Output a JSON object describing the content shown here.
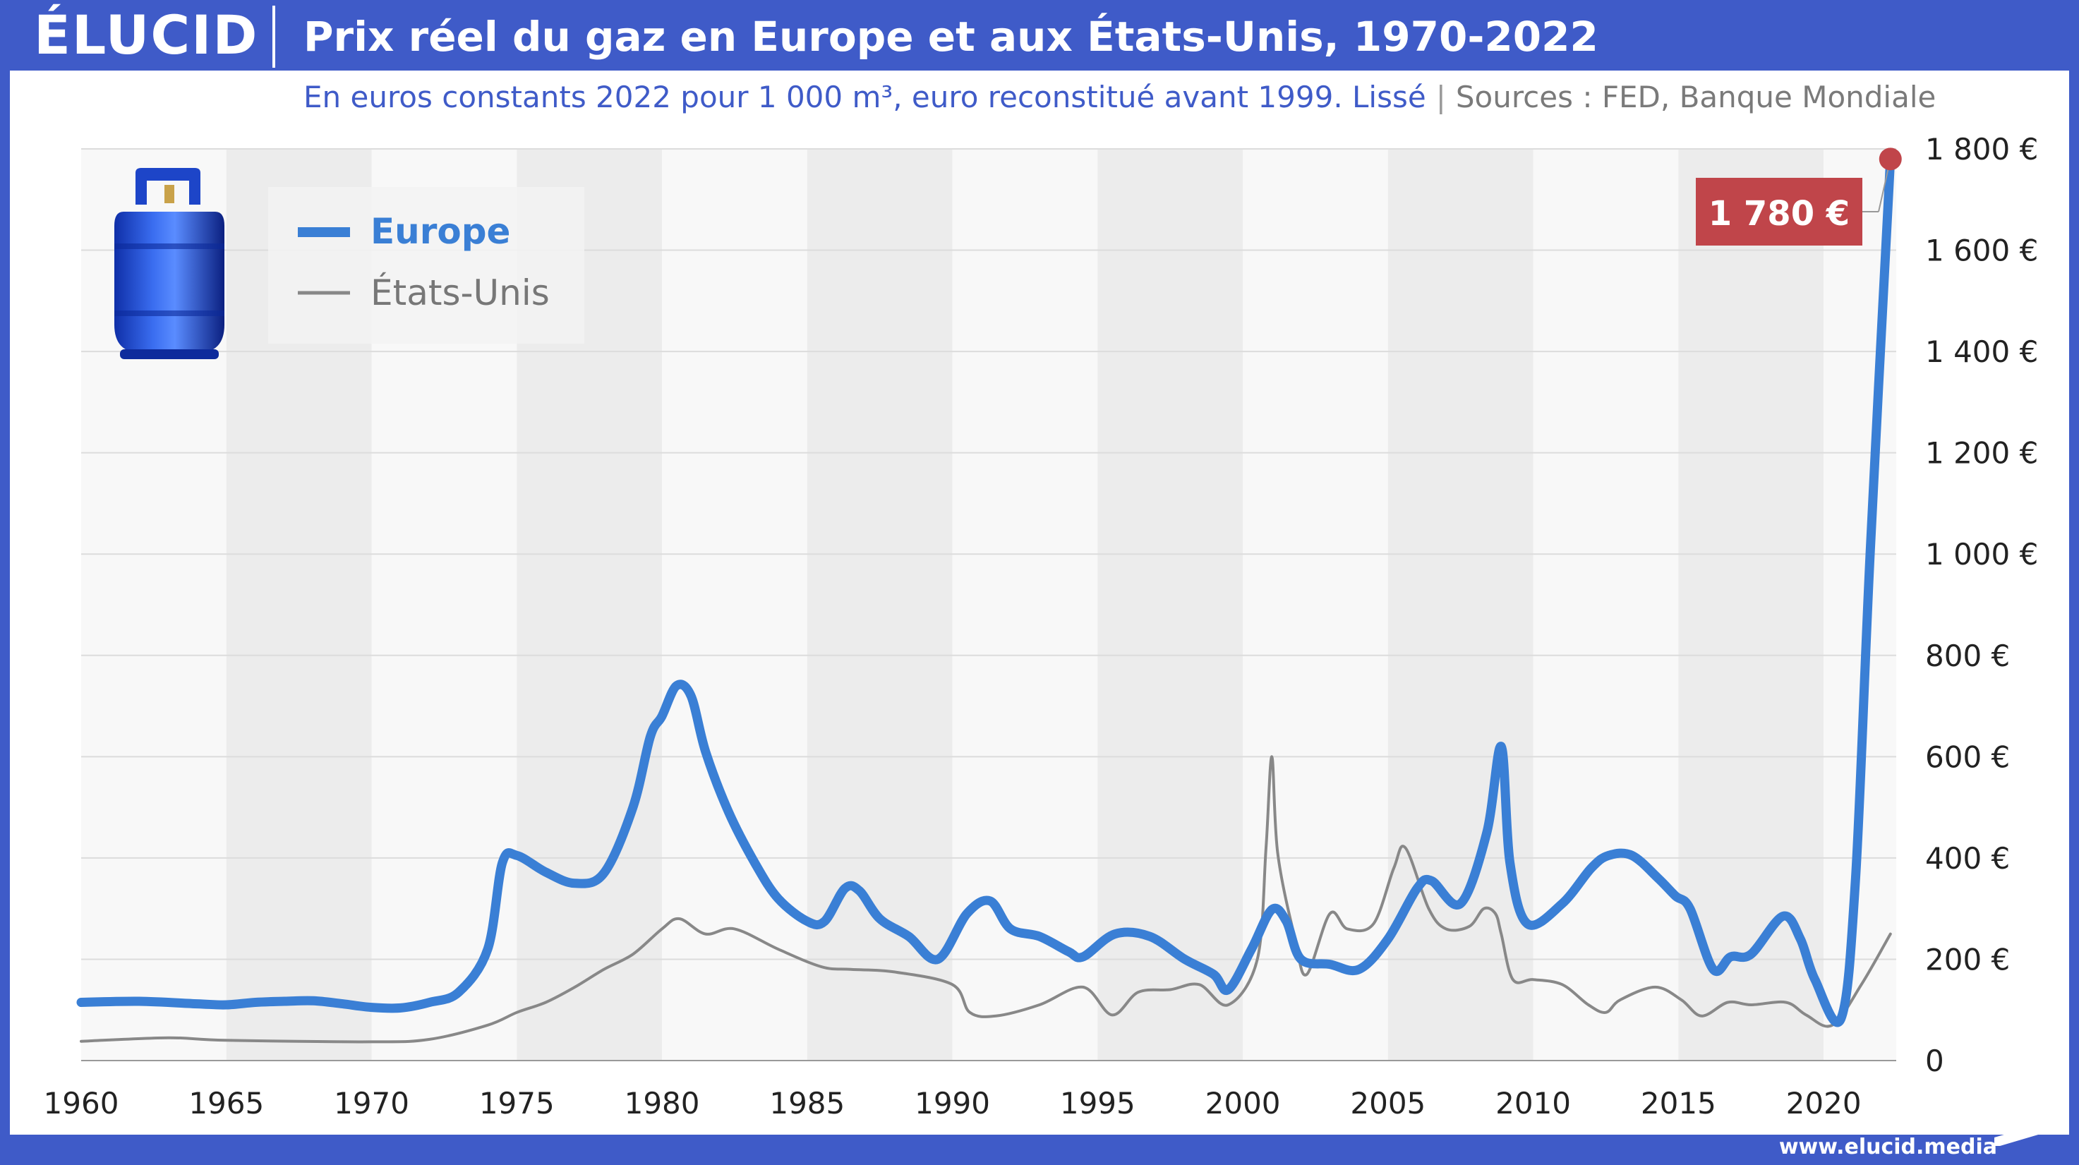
{
  "header": {
    "logo": "ÉLUCID",
    "title": "Prix réel du gaz en Europe et aux États-Unis, 1970-2022"
  },
  "subtitle": {
    "main": "En euros constants 2022 pour 1 000 m³, euro reconstitué avant 1999. Lissé",
    "separator": "|",
    "sources": "Sources : FED, Banque Mondiale"
  },
  "footer": {
    "url": "www.elucid.media"
  },
  "colors": {
    "brand": "#3f5bc8",
    "europe": "#3a7fd5",
    "usa": "#888888",
    "callout": "#c0454a"
  },
  "icons": [
    "gas-cylinder-icon",
    "elucid-logo"
  ],
  "chart_data": {
    "type": "line",
    "xlim": [
      1960,
      2022.5
    ],
    "ylim": [
      0,
      1800
    ],
    "x_ticks": [
      1960,
      1965,
      1970,
      1975,
      1980,
      1985,
      1990,
      1995,
      2000,
      2005,
      2010,
      2015,
      2020
    ],
    "y_ticks": [
      {
        "value": 0,
        "label": "0"
      },
      {
        "value": 200,
        "label": "200 €"
      },
      {
        "value": 400,
        "label": "400 €"
      },
      {
        "value": 600,
        "label": "600 €"
      },
      {
        "value": 800,
        "label": "800 €"
      },
      {
        "value": 1000,
        "label": "1 000 €"
      },
      {
        "value": 1200,
        "label": "1 200 €"
      },
      {
        "value": 1400,
        "label": "1 400 €"
      },
      {
        "value": 1600,
        "label": "1 600 €"
      },
      {
        "value": 1800,
        "label": "1 800 €"
      }
    ],
    "y_axis_side": "right",
    "background": "alternating vertical bands every 5 years",
    "grid": true,
    "legend_position": "top-left",
    "series": [
      {
        "name": "Europe",
        "color": "#3a7fd5",
        "width": "thick",
        "points": [
          [
            1960,
            115
          ],
          [
            1962,
            117
          ],
          [
            1964,
            112
          ],
          [
            1965,
            110
          ],
          [
            1966,
            115
          ],
          [
            1967,
            117
          ],
          [
            1968,
            118
          ],
          [
            1969,
            112
          ],
          [
            1970,
            105
          ],
          [
            1971,
            104
          ],
          [
            1972,
            115
          ],
          [
            1973,
            135
          ],
          [
            1974,
            220
          ],
          [
            1974.5,
            390
          ],
          [
            1975,
            405
          ],
          [
            1976,
            372
          ],
          [
            1977,
            350
          ],
          [
            1978,
            370
          ],
          [
            1979,
            500
          ],
          [
            1979.6,
            640
          ],
          [
            1980,
            680
          ],
          [
            1980.5,
            740
          ],
          [
            1981,
            720
          ],
          [
            1981.5,
            610
          ],
          [
            1982.3,
            490
          ],
          [
            1983.2,
            390
          ],
          [
            1984,
            320
          ],
          [
            1985,
            275
          ],
          [
            1985.6,
            275
          ],
          [
            1986.3,
            340
          ],
          [
            1986.8,
            335
          ],
          [
            1987.5,
            280
          ],
          [
            1988.5,
            245
          ],
          [
            1989.5,
            200
          ],
          [
            1990.5,
            290
          ],
          [
            1991.3,
            315
          ],
          [
            1992,
            260
          ],
          [
            1993,
            245
          ],
          [
            1994,
            215
          ],
          [
            1994.5,
            205
          ],
          [
            1995.6,
            250
          ],
          [
            1996.8,
            245
          ],
          [
            1998,
            200
          ],
          [
            1999,
            170
          ],
          [
            1999.5,
            140
          ],
          [
            2000.3,
            220
          ],
          [
            2001,
            298
          ],
          [
            2001.5,
            275
          ],
          [
            2002,
            200
          ],
          [
            2003,
            190
          ],
          [
            2004,
            180
          ],
          [
            2005,
            240
          ],
          [
            2006,
            340
          ],
          [
            2006.5,
            355
          ],
          [
            2007.5,
            310
          ],
          [
            2008.4,
            450
          ],
          [
            2008.9,
            620
          ],
          [
            2009.2,
            390
          ],
          [
            2009.8,
            270
          ],
          [
            2011,
            310
          ],
          [
            2012,
            380
          ],
          [
            2012.6,
            405
          ],
          [
            2013.4,
            405
          ],
          [
            2014.3,
            360
          ],
          [
            2014.9,
            325
          ],
          [
            2015.4,
            300
          ],
          [
            2016.2,
            180
          ],
          [
            2016.8,
            205
          ],
          [
            2017.5,
            210
          ],
          [
            2018.6,
            285
          ],
          [
            2019.2,
            240
          ],
          [
            2019.7,
            160
          ],
          [
            2020.6,
            83
          ],
          [
            2021.1,
            360
          ],
          [
            2021.6,
            1000
          ],
          [
            2022.3,
            1780
          ]
        ]
      },
      {
        "name": "États-Unis",
        "color": "#888888",
        "width": "thin",
        "points": [
          [
            1960,
            38
          ],
          [
            1963,
            45
          ],
          [
            1965,
            40
          ],
          [
            1970,
            37
          ],
          [
            1972,
            42
          ],
          [
            1974,
            70
          ],
          [
            1975,
            95
          ],
          [
            1976,
            115
          ],
          [
            1977,
            145
          ],
          [
            1978,
            180
          ],
          [
            1979,
            210
          ],
          [
            1980,
            260
          ],
          [
            1980.6,
            280
          ],
          [
            1981.5,
            250
          ],
          [
            1982.5,
            260
          ],
          [
            1984,
            220
          ],
          [
            1985.5,
            185
          ],
          [
            1986.5,
            180
          ],
          [
            1988,
            175
          ],
          [
            1990,
            150
          ],
          [
            1990.6,
            95
          ],
          [
            1991.5,
            88
          ],
          [
            1993,
            110
          ],
          [
            1994.5,
            145
          ],
          [
            1995.5,
            90
          ],
          [
            1996.4,
            135
          ],
          [
            1997.5,
            140
          ],
          [
            1998.5,
            150
          ],
          [
            1999.5,
            110
          ],
          [
            2000.5,
            200
          ],
          [
            2000.8,
            420
          ],
          [
            2001,
            600
          ],
          [
            2001.2,
            410
          ],
          [
            2001.8,
            240
          ],
          [
            2002.2,
            170
          ],
          [
            2003,
            290
          ],
          [
            2003.6,
            260
          ],
          [
            2004.5,
            270
          ],
          [
            2005.2,
            380
          ],
          [
            2005.6,
            420
          ],
          [
            2006.4,
            300
          ],
          [
            2007,
            260
          ],
          [
            2007.8,
            265
          ],
          [
            2008.3,
            300
          ],
          [
            2008.7,
            290
          ],
          [
            2008.9,
            250
          ],
          [
            2009.3,
            160
          ],
          [
            2010,
            160
          ],
          [
            2011,
            150
          ],
          [
            2011.9,
            110
          ],
          [
            2012.5,
            95
          ],
          [
            2013,
            120
          ],
          [
            2014.2,
            145
          ],
          [
            2015.1,
            120
          ],
          [
            2015.8,
            88
          ],
          [
            2016.7,
            115
          ],
          [
            2017.5,
            110
          ],
          [
            2018.7,
            115
          ],
          [
            2019.4,
            90
          ],
          [
            2020.3,
            70
          ],
          [
            2021.3,
            150
          ],
          [
            2022.3,
            250
          ]
        ]
      }
    ],
    "annotation": {
      "x": 2022.3,
      "y": 1780,
      "label": "1 780 €"
    }
  }
}
